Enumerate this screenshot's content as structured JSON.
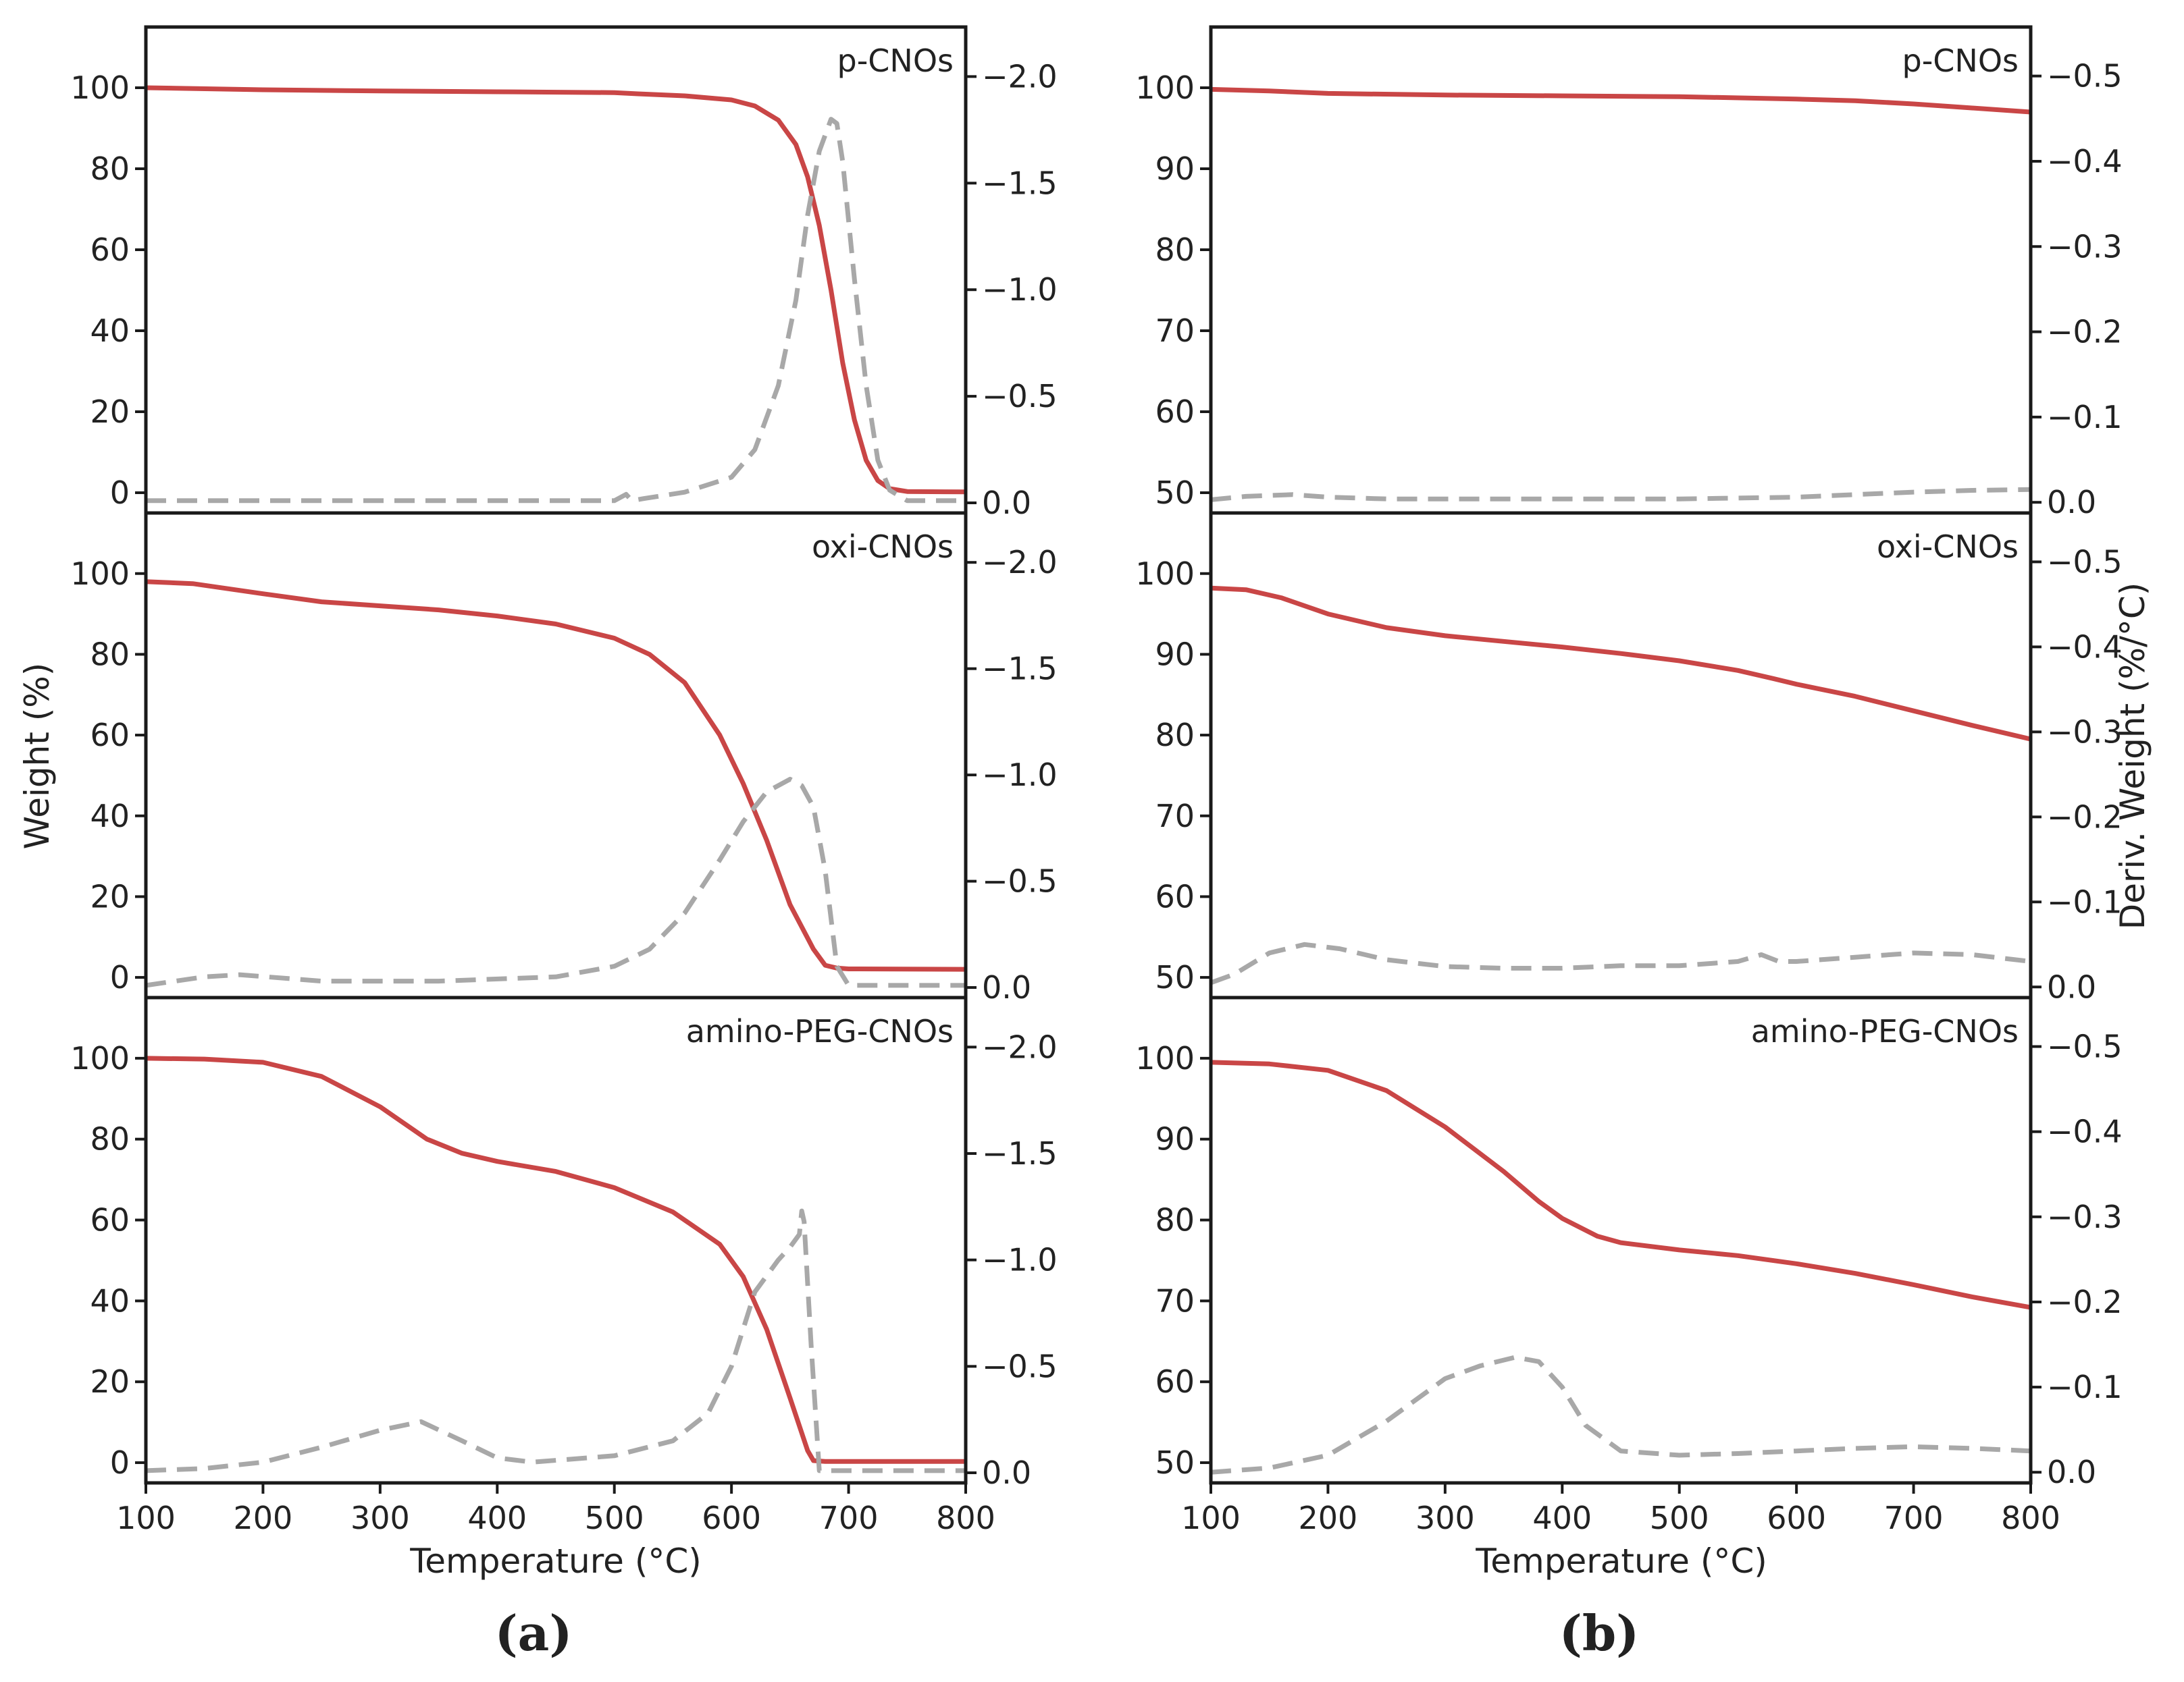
{
  "figure": {
    "y_left_label": "Weight (%)",
    "y_right_label": "Deriv. Weight (%/°C)",
    "x_label": "Temperature (°C)",
    "colors": {
      "weight": "#c94646",
      "deriv": "#a8a8a8",
      "axis": "#1a1a1a",
      "text": "#222222"
    }
  },
  "columns": [
    {
      "label": "(a)",
      "xlabel": "Temperature (°C)",
      "x_ticks": [
        100,
        200,
        300,
        400,
        500,
        600,
        700,
        800
      ]
    },
    {
      "label": "(b)",
      "xlabel": "Temperature (°C)",
      "x_ticks": [
        100,
        200,
        300,
        400,
        500,
        600,
        700,
        800
      ]
    }
  ],
  "chart_data": [
    {
      "type": "line",
      "column": 0,
      "row": 0,
      "title": "p-CNOs",
      "xlim": [
        100,
        800
      ],
      "ylim": [
        -5,
        115
      ],
      "y2lim": [
        0.0475,
        -2.2325
      ],
      "y_ticks": [
        0,
        20,
        40,
        60,
        80,
        100
      ],
      "y2_ticks": [
        0.0,
        -0.5,
        -1.0,
        -1.5,
        -2.0
      ],
      "y_tick_labels": [
        "0",
        "20",
        "40",
        "60",
        "80",
        "100"
      ],
      "y2_tick_labels": [
        "0.0",
        "−0.5",
        "−1.0",
        "−1.5",
        "−2.0"
      ],
      "series": [
        {
          "name": "Weight",
          "axis": "left",
          "style": "solid",
          "x": [
            100,
            200,
            300,
            400,
            500,
            520,
            560,
            600,
            620,
            640,
            655,
            665,
            675,
            685,
            695,
            705,
            715,
            725,
            735,
            750,
            800
          ],
          "y": [
            100,
            99.5,
            99.2,
            99.0,
            98.8,
            98.5,
            98.0,
            97.0,
            95.5,
            92.0,
            86.0,
            78.0,
            66.0,
            50.0,
            32.0,
            18.0,
            8.0,
            3.0,
            1.0,
            0.3,
            0.2
          ]
        },
        {
          "name": "Deriv. Weight",
          "axis": "right",
          "style": "dashed",
          "x": [
            100,
            200,
            300,
            400,
            500,
            510,
            515,
            525,
            560,
            600,
            620,
            640,
            655,
            665,
            675,
            685,
            690,
            695,
            705,
            715,
            725,
            735,
            750,
            800
          ],
          "y": [
            -0.01,
            -0.01,
            -0.01,
            -0.01,
            -0.01,
            -0.04,
            -0.01,
            -0.02,
            -0.05,
            -0.12,
            -0.25,
            -0.55,
            -0.95,
            -1.35,
            -1.65,
            -1.8,
            -1.78,
            -1.6,
            -1.05,
            -0.55,
            -0.2,
            -0.06,
            -0.01,
            -0.01
          ]
        }
      ]
    },
    {
      "type": "line",
      "column": 0,
      "row": 1,
      "title": "oxi-CNOs",
      "xlim": [
        100,
        800
      ],
      "ylim": [
        -5,
        115
      ],
      "y2lim": [
        0.0475,
        -2.2325
      ],
      "y_ticks": [
        0,
        20,
        40,
        60,
        80,
        100
      ],
      "y2_ticks": [
        0.0,
        -0.5,
        -1.0,
        -1.5,
        -2.0
      ],
      "y_tick_labels": [
        "0",
        "20",
        "40",
        "60",
        "80",
        "100"
      ],
      "y2_tick_labels": [
        "0.0",
        "−0.5",
        "−1.0",
        "−1.5",
        "−2.0"
      ],
      "series": [
        {
          "name": "Weight",
          "axis": "left",
          "style": "solid",
          "x": [
            100,
            140,
            200,
            250,
            300,
            350,
            400,
            450,
            500,
            530,
            560,
            590,
            610,
            630,
            650,
            670,
            680,
            690,
            700,
            800
          ],
          "y": [
            98,
            97.5,
            95,
            93,
            92,
            91,
            89.5,
            87.5,
            84,
            80,
            73,
            60,
            48,
            34,
            18,
            7,
            3,
            2.3,
            2.1,
            2.0
          ]
        },
        {
          "name": "Deriv. Weight",
          "axis": "right",
          "style": "dashed",
          "x": [
            100,
            150,
            180,
            250,
            350,
            450,
            500,
            530,
            560,
            590,
            610,
            630,
            650,
            660,
            670,
            680,
            690,
            700,
            800
          ],
          "y": [
            -0.01,
            -0.05,
            -0.06,
            -0.03,
            -0.03,
            -0.05,
            -0.1,
            -0.18,
            -0.35,
            -0.6,
            -0.78,
            -0.92,
            -0.98,
            -0.95,
            -0.85,
            -0.55,
            -0.1,
            -0.01,
            -0.01
          ]
        }
      ]
    },
    {
      "type": "line",
      "column": 0,
      "row": 2,
      "title": "amino-PEG-CNOs",
      "xlim": [
        100,
        800
      ],
      "ylim": [
        -5,
        115
      ],
      "y2lim": [
        0.0475,
        -2.2325
      ],
      "y_ticks": [
        0,
        20,
        40,
        60,
        80,
        100
      ],
      "y2_ticks": [
        0.0,
        -0.5,
        -1.0,
        -1.5,
        -2.0
      ],
      "y_tick_labels": [
        "0",
        "20",
        "40",
        "60",
        "80",
        "100"
      ],
      "y2_tick_labels": [
        "0.0",
        "−0.5",
        "−1.0",
        "−1.5",
        "−2.0"
      ],
      "series": [
        {
          "name": "Weight",
          "axis": "left",
          "style": "solid",
          "x": [
            100,
            150,
            200,
            250,
            300,
            340,
            370,
            400,
            450,
            500,
            550,
            590,
            610,
            630,
            650,
            665,
            670,
            680,
            800
          ],
          "y": [
            100,
            99.8,
            99,
            95.5,
            88,
            80,
            76.5,
            74.5,
            72,
            68,
            62,
            54,
            46,
            33,
            16,
            3,
            0.5,
            0.3,
            0.3
          ]
        },
        {
          "name": "Deriv. Weight",
          "axis": "right",
          "style": "dashed",
          "x": [
            100,
            150,
            200,
            250,
            300,
            335,
            370,
            400,
            430,
            500,
            550,
            580,
            600,
            620,
            640,
            650,
            658,
            660,
            662,
            668,
            675,
            800
          ],
          "y": [
            -0.01,
            -0.02,
            -0.05,
            -0.12,
            -0.2,
            -0.24,
            -0.15,
            -0.07,
            -0.05,
            -0.08,
            -0.15,
            -0.28,
            -0.5,
            -0.85,
            -1.0,
            -1.06,
            -1.12,
            -1.23,
            -1.18,
            -0.6,
            -0.01,
            -0.01
          ]
        }
      ]
    },
    {
      "type": "line",
      "column": 1,
      "row": 0,
      "title": "p-CNOs",
      "xlim": [
        100,
        800
      ],
      "ylim": [
        47.5,
        107.5
      ],
      "y2lim": [
        0.0125,
        -0.5575
      ],
      "y_ticks": [
        50,
        60,
        70,
        80,
        90,
        100
      ],
      "y2_ticks": [
        0.0,
        -0.1,
        -0.2,
        -0.3,
        -0.4,
        -0.5
      ],
      "y_tick_labels": [
        "50",
        "60",
        "70",
        "80",
        "90",
        "100"
      ],
      "y2_tick_labels": [
        "0.0",
        "−0.1",
        "−0.2",
        "−0.3",
        "−0.4",
        "−0.5"
      ],
      "series": [
        {
          "name": "Weight",
          "axis": "left",
          "style": "solid",
          "x": [
            100,
            150,
            200,
            300,
            400,
            500,
            600,
            650,
            700,
            750,
            800
          ],
          "y": [
            99.8,
            99.6,
            99.3,
            99.1,
            99.0,
            98.9,
            98.6,
            98.4,
            98.0,
            97.5,
            97.0
          ]
        },
        {
          "name": "Deriv. Weight",
          "axis": "right",
          "style": "dashed",
          "x": [
            100,
            130,
            170,
            200,
            250,
            300,
            400,
            500,
            600,
            650,
            700,
            750,
            800
          ],
          "y": [
            -0.003,
            -0.007,
            -0.009,
            -0.006,
            -0.004,
            -0.004,
            -0.004,
            -0.004,
            -0.006,
            -0.009,
            -0.012,
            -0.014,
            -0.015
          ]
        }
      ]
    },
    {
      "type": "line",
      "column": 1,
      "row": 1,
      "title": "oxi-CNOs",
      "xlim": [
        100,
        800
      ],
      "ylim": [
        47.5,
        107.5
      ],
      "y2lim": [
        0.0125,
        -0.5575
      ],
      "y_ticks": [
        50,
        60,
        70,
        80,
        90,
        100
      ],
      "y2_ticks": [
        0.0,
        -0.1,
        -0.2,
        -0.3,
        -0.4,
        -0.5
      ],
      "y_tick_labels": [
        "50",
        "60",
        "70",
        "80",
        "90",
        "100"
      ],
      "y2_tick_labels": [
        "0.0",
        "−0.1",
        "−0.2",
        "−0.3",
        "−0.4",
        "−0.5"
      ],
      "series": [
        {
          "name": "Weight",
          "axis": "left",
          "style": "solid",
          "x": [
            100,
            130,
            160,
            200,
            250,
            300,
            350,
            400,
            450,
            500,
            550,
            580,
            600,
            650,
            700,
            750,
            800
          ],
          "y": [
            98.2,
            98.0,
            97.0,
            95.0,
            93.3,
            92.3,
            91.6,
            90.9,
            90.1,
            89.2,
            88.0,
            87.0,
            86.3,
            84.8,
            83.0,
            81.2,
            79.5
          ]
        },
        {
          "name": "Deriv. Weight",
          "axis": "right",
          "style": "dashed",
          "x": [
            100,
            120,
            150,
            180,
            210,
            250,
            300,
            350,
            400,
            450,
            500,
            550,
            570,
            585,
            600,
            650,
            700,
            750,
            800
          ],
          "y": [
            -0.005,
            -0.015,
            -0.04,
            -0.05,
            -0.045,
            -0.032,
            -0.024,
            -0.022,
            -0.022,
            -0.025,
            -0.025,
            -0.03,
            -0.038,
            -0.03,
            -0.03,
            -0.035,
            -0.04,
            -0.038,
            -0.03
          ]
        }
      ]
    },
    {
      "type": "line",
      "column": 1,
      "row": 2,
      "title": "amino-PEG-CNOs",
      "xlim": [
        100,
        800
      ],
      "ylim": [
        47.5,
        107.5
      ],
      "y2lim": [
        0.0125,
        -0.5575
      ],
      "y_ticks": [
        50,
        60,
        70,
        80,
        90,
        100
      ],
      "y2_ticks": [
        0.0,
        -0.1,
        -0.2,
        -0.3,
        -0.4,
        -0.5
      ],
      "y_tick_labels": [
        "50",
        "60",
        "70",
        "80",
        "90",
        "100"
      ],
      "y2_tick_labels": [
        "0.0",
        "−0.1",
        "−0.2",
        "−0.3",
        "−0.4",
        "−0.5"
      ],
      "series": [
        {
          "name": "Weight",
          "axis": "left",
          "style": "solid",
          "x": [
            100,
            150,
            200,
            250,
            300,
            350,
            380,
            400,
            430,
            450,
            500,
            550,
            600,
            650,
            700,
            750,
            800
          ],
          "y": [
            99.5,
            99.3,
            98.5,
            96.0,
            91.5,
            86.0,
            82.3,
            80.2,
            78.0,
            77.2,
            76.3,
            75.6,
            74.6,
            73.4,
            72.0,
            70.5,
            69.2
          ]
        },
        {
          "name": "Deriv. Weight",
          "axis": "right",
          "style": "dashed",
          "x": [
            100,
            150,
            200,
            250,
            300,
            330,
            360,
            380,
            400,
            420,
            450,
            500,
            550,
            600,
            650,
            700,
            750,
            800
          ],
          "y": [
            0.0,
            -0.005,
            -0.02,
            -0.06,
            -0.11,
            -0.125,
            -0.135,
            -0.13,
            -0.1,
            -0.055,
            -0.025,
            -0.02,
            -0.022,
            -0.025,
            -0.028,
            -0.03,
            -0.028,
            -0.025
          ]
        }
      ]
    }
  ]
}
